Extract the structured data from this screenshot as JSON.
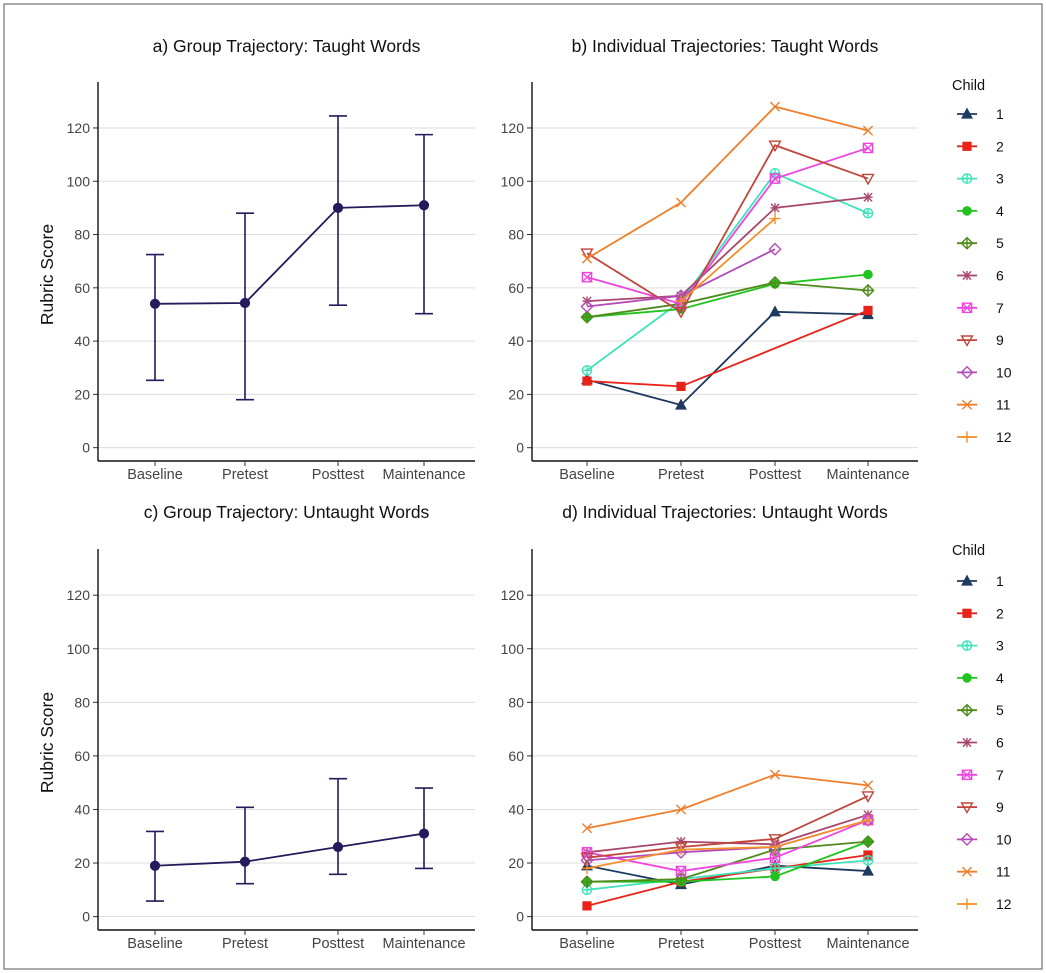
{
  "chart_data": [
    {
      "panel": "a",
      "type": "line",
      "title": "a) Group Trajectory: Taught Words",
      "xlabel": "",
      "ylabel": "Rubric Score",
      "categories": [
        "Baseline",
        "Pretest",
        "Posttest",
        "Maintenance"
      ],
      "ylim": [
        -5,
        135
      ],
      "yticks": [
        0,
        20,
        40,
        60,
        80,
        100,
        120
      ],
      "grid": true,
      "error_bars": true,
      "series": [
        {
          "values": [
            54,
            54.3,
            90,
            91
          ],
          "lower": [
            25.3,
            18,
            53.5,
            50.3
          ],
          "upper": [
            72.5,
            88,
            124.5,
            117.5
          ],
          "color": "#241a5c"
        }
      ]
    },
    {
      "panel": "b",
      "type": "line",
      "title": "b) Individual Trajectories: Taught Words",
      "xlabel": "",
      "ylabel": "",
      "categories": [
        "Baseline",
        "Pretest",
        "Posttest",
        "Maintenance"
      ],
      "ylim": [
        -5,
        135
      ],
      "yticks": [
        0,
        20,
        40,
        60,
        80,
        100,
        120
      ],
      "grid": true,
      "legend_title": "Child",
      "legend_position": "right",
      "series": [
        {
          "name": "1",
          "values": [
            25.5,
            16,
            51,
            50
          ],
          "color": "#1f3a5f",
          "marker": "triangle"
        },
        {
          "name": "2",
          "values": [
            25,
            23,
            null,
            51.5
          ],
          "color": "#e8231a",
          "marker": "square"
        },
        {
          "name": "3",
          "values": [
            29,
            55,
            103,
            88
          ],
          "color": "#3de3bb",
          "marker": "circle-plus"
        },
        {
          "name": "4",
          "values": [
            49,
            52,
            61.5,
            65
          ],
          "color": "#21c41e",
          "marker": "dot"
        },
        {
          "name": "5",
          "values": [
            49,
            54,
            62,
            59
          ],
          "color": "#4f8a1c",
          "marker": "diamond-plus"
        },
        {
          "name": "6",
          "values": [
            55,
            57,
            90,
            94
          ],
          "color": "#a8476e",
          "marker": "asterisk"
        },
        {
          "name": "7",
          "values": [
            64,
            54,
            101,
            112.5
          ],
          "color": "#f044e0",
          "marker": "square-x"
        },
        {
          "name": "9",
          "values": [
            73,
            51,
            113.5,
            101
          ],
          "color": "#c0453a",
          "marker": "triangle-down"
        },
        {
          "name": "10",
          "values": [
            53,
            57,
            74.5,
            null
          ],
          "color": "#b44bb8",
          "marker": "diamond"
        },
        {
          "name": "11",
          "values": [
            71,
            92,
            128,
            119
          ],
          "color": "#f07e2a",
          "marker": "x"
        },
        {
          "name": "12",
          "values": [
            null,
            55,
            86,
            null
          ],
          "color": "#f3902a",
          "marker": "plus"
        }
      ]
    },
    {
      "panel": "c",
      "type": "line",
      "title": "c) Group Trajectory: Untaught Words",
      "xlabel": "",
      "ylabel": "Rubric Score",
      "categories": [
        "Baseline",
        "Pretest",
        "Posttest",
        "Maintenance"
      ],
      "ylim": [
        -5,
        135
      ],
      "yticks": [
        0,
        20,
        40,
        60,
        80,
        100,
        120
      ],
      "grid": true,
      "error_bars": true,
      "series": [
        {
          "values": [
            19,
            20.5,
            26,
            31
          ],
          "lower": [
            5.8,
            12.3,
            15.8,
            18
          ],
          "upper": [
            31.8,
            40.8,
            51.5,
            48
          ],
          "color": "#241a5c"
        }
      ]
    },
    {
      "panel": "d",
      "type": "line",
      "title": "d) Individual Trajectories: Untaught Words",
      "xlabel": "",
      "ylabel": "",
      "categories": [
        "Baseline",
        "Pretest",
        "Posttest",
        "Maintenance"
      ],
      "ylim": [
        -5,
        135
      ],
      "yticks": [
        0,
        20,
        40,
        60,
        80,
        100,
        120
      ],
      "grid": true,
      "legend_title": "Child",
      "legend_position": "right",
      "series": [
        {
          "name": "1",
          "values": [
            19,
            12,
            19,
            17
          ],
          "color": "#1f3a5f",
          "marker": "triangle"
        },
        {
          "name": "2",
          "values": [
            4,
            13,
            18,
            23
          ],
          "color": "#e8231a",
          "marker": "square"
        },
        {
          "name": "3",
          "values": [
            10,
            14,
            18,
            21
          ],
          "color": "#3de3bb",
          "marker": "circle-plus"
        },
        {
          "name": "4",
          "values": [
            13,
            13,
            15,
            28
          ],
          "color": "#21c41e",
          "marker": "dot"
        },
        {
          "name": "5",
          "values": [
            13,
            14,
            25,
            28
          ],
          "color": "#4f8a1c",
          "marker": "diamond-plus"
        },
        {
          "name": "6",
          "values": [
            24,
            28,
            27,
            38
          ],
          "color": "#a8476e",
          "marker": "asterisk"
        },
        {
          "name": "7",
          "values": [
            24,
            17,
            22,
            36
          ],
          "color": "#f044e0",
          "marker": "square-x"
        },
        {
          "name": "9",
          "values": [
            22,
            26,
            29,
            45
          ],
          "color": "#c0453a",
          "marker": "triangle-down"
        },
        {
          "name": "10",
          "values": [
            21,
            24,
            26,
            36
          ],
          "color": "#b44bb8",
          "marker": "diamond"
        },
        {
          "name": "11",
          "values": [
            33,
            40,
            53,
            49
          ],
          "color": "#f07e2a",
          "marker": "x"
        },
        {
          "name": "12",
          "values": [
            18,
            25,
            26,
            36
          ],
          "color": "#f3902a",
          "marker": "plus"
        }
      ]
    }
  ]
}
